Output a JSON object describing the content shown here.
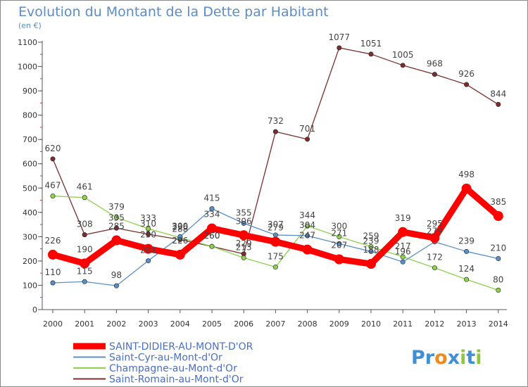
{
  "title": "Evolution du Montant de la Dette par Habitant",
  "subtitle": "(en €)",
  "brand": "Proxiti",
  "chart_data": {
    "type": "line",
    "title": "Evolution du Montant de la Dette par Habitant",
    "ylabel": "(en €)",
    "ylim": [
      0,
      1100
    ],
    "yticks": [
      0,
      100,
      200,
      300,
      400,
      500,
      600,
      700,
      800,
      900,
      1000,
      1100
    ],
    "grid": false,
    "legend_position": "bottom-left",
    "x": [
      "2000",
      "2001",
      "2002",
      "2003",
      "2004",
      "2005",
      "2006",
      "2007",
      "2008",
      "2009",
      "2010",
      "2011",
      "2012",
      "2013",
      "2014"
    ],
    "series": [
      {
        "name": "SAINT-DIDIER-AU-MONT-D'OR",
        "color": "#ff0000",
        "values": [
          226,
          190,
          285,
          250,
          226,
          334,
          306,
          279,
          247,
          207,
          188,
          319,
          295,
          498,
          385
        ]
      },
      {
        "name": "Saint-Cyr-au-Mont-d'Or",
        "color": "#5b8fc8",
        "values": [
          110,
          115,
          98,
          201,
          300,
          415,
          355,
          307,
          304,
          271,
          239,
          196,
          279,
          239,
          210
        ]
      },
      {
        "name": "Champagne-au-Mont-d'Or",
        "color": "#8ed150",
        "values": [
          467,
          461,
          379,
          333,
          296,
          260,
          213,
          175,
          344,
          300,
          259,
          217,
          172,
          124,
          80
        ]
      },
      {
        "name": "Saint-Romain-au-Mont-d'Or",
        "color": "#7b2e2e",
        "values": [
          620,
          308,
          335,
          310,
          288,
          260,
          229,
          732,
          701,
          1077,
          1051,
          1005,
          968,
          926,
          844
        ]
      }
    ]
  }
}
